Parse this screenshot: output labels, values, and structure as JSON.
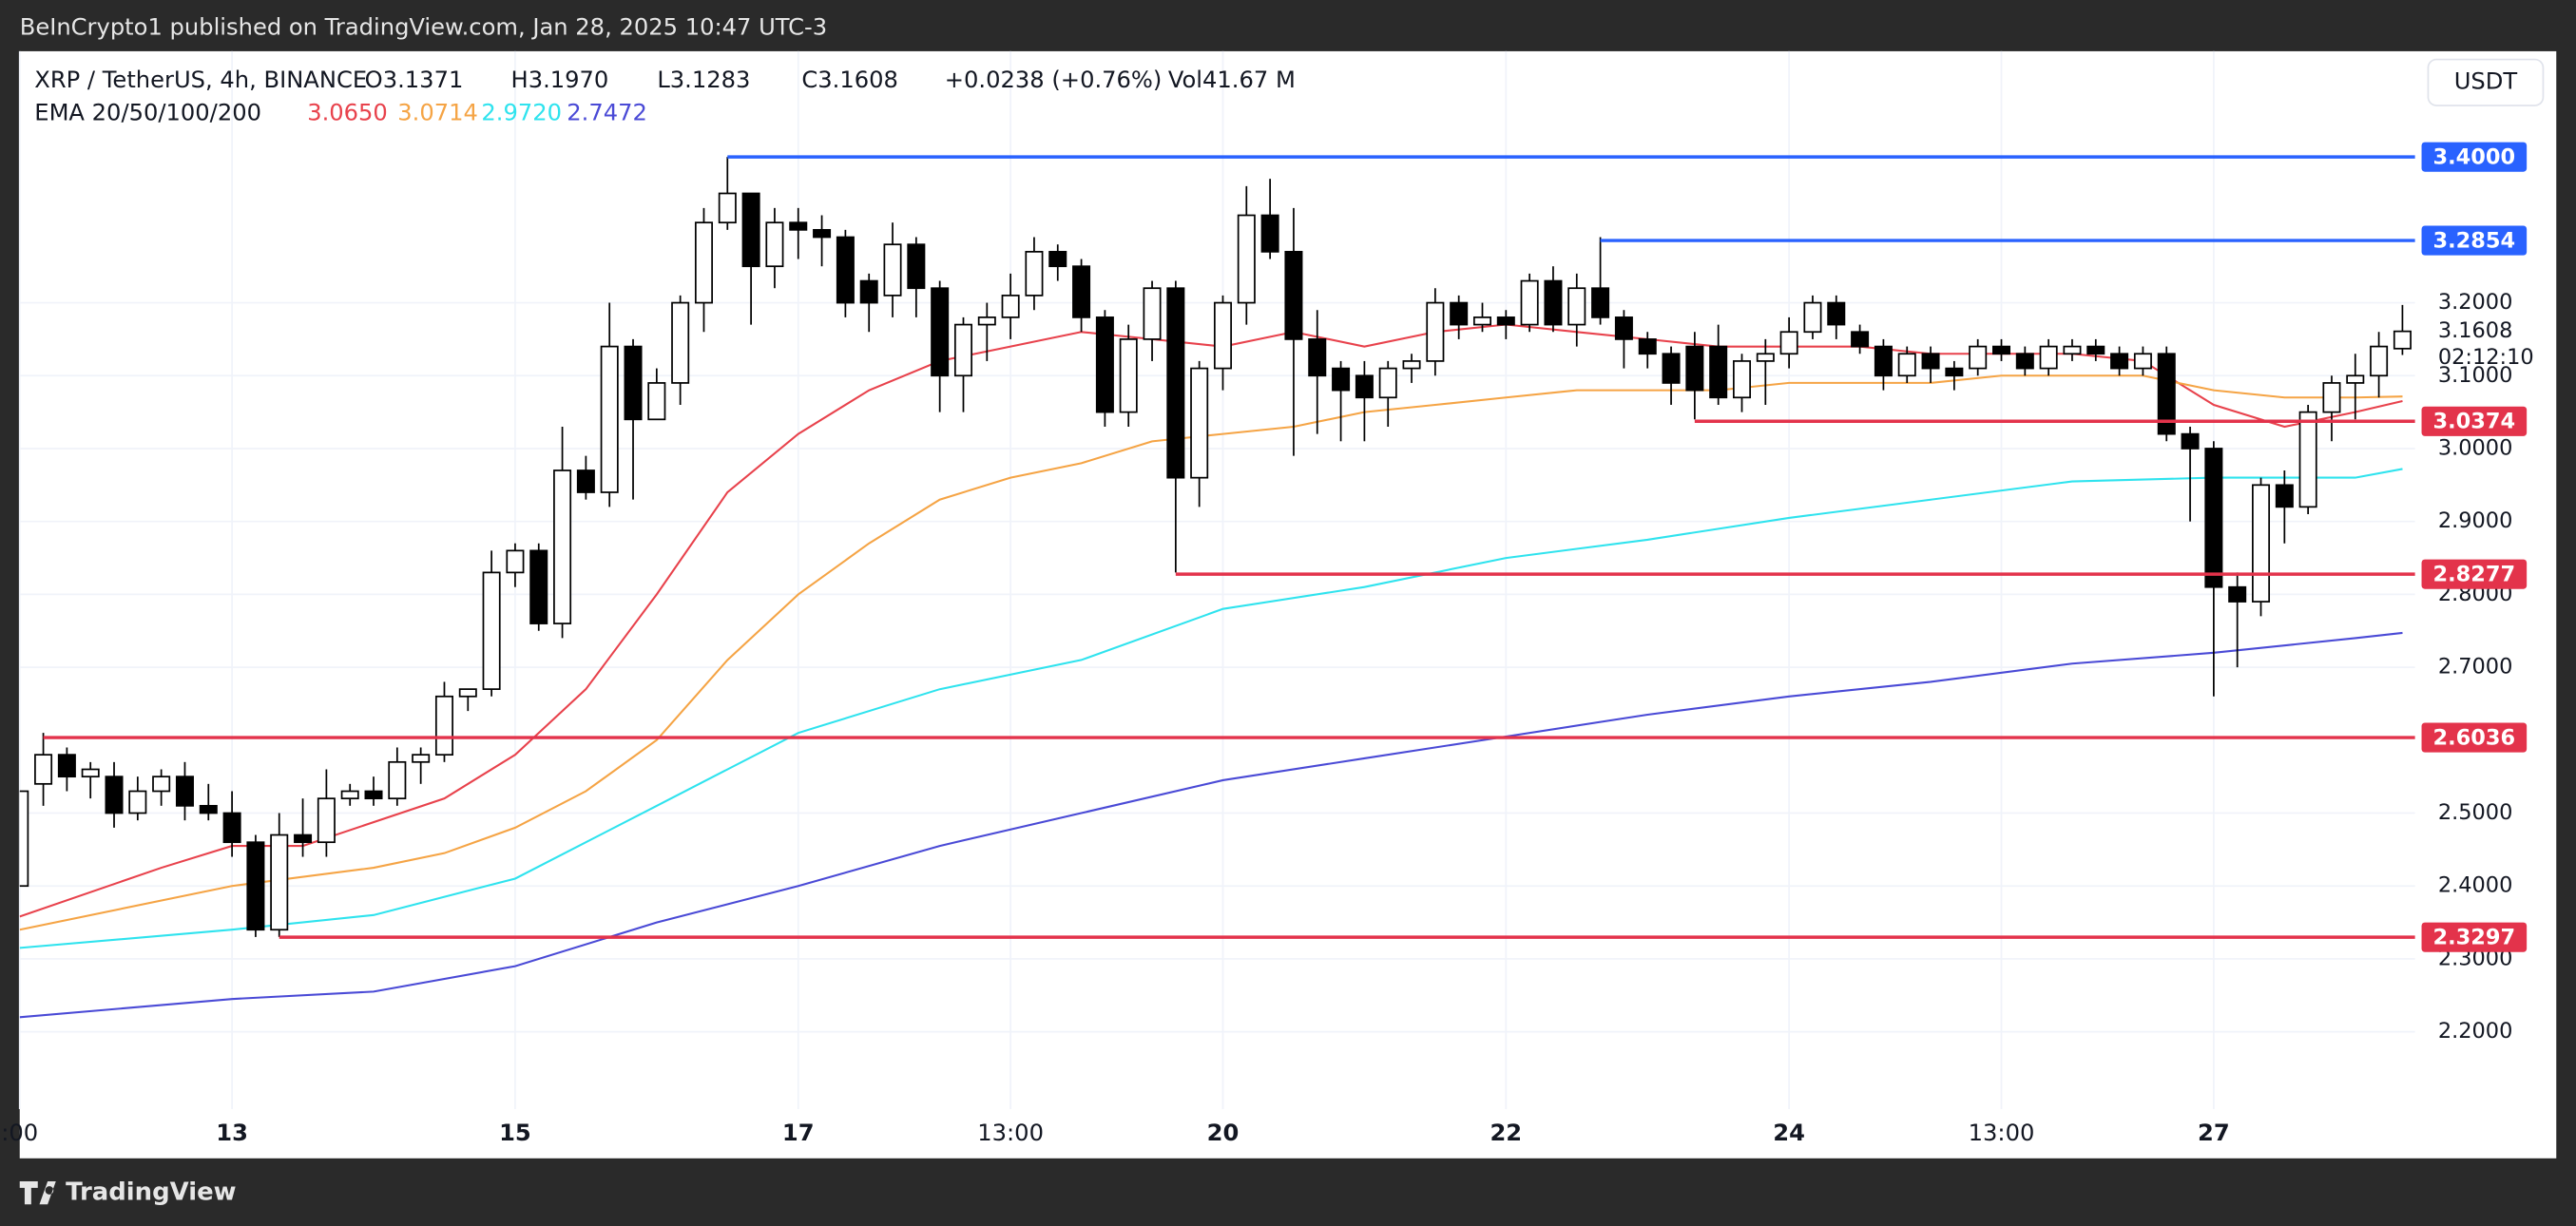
{
  "top_bar": {
    "published": "BeInCrypto1 published on TradingView.com, Jan 28, 2025 10:47 UTC-3"
  },
  "legend": {
    "symbol": "XRP / TetherUS, 4h, BINANCE",
    "ohlc": [
      "O3.1371",
      "H3.1970",
      "L3.1283",
      "C3.1608",
      "+0.0238 (+0.76%)",
      "Vol41.67 M"
    ],
    "ema_title": "EMA 20/50/100/200"
  },
  "currency_button": "USDT",
  "footer": {
    "brand": "TradingView"
  },
  "chart_data": {
    "type": "candlestick",
    "categories": [
      ":00",
      null,
      null,
      null,
      null,
      null,
      null,
      null,
      null,
      "13",
      null,
      null,
      null,
      null,
      null,
      null,
      null,
      null,
      null,
      null,
      null,
      "15",
      null,
      null,
      null,
      null,
      null,
      null,
      null,
      null,
      null,
      null,
      null,
      "17",
      null,
      null,
      null,
      null,
      null,
      null,
      null,
      null,
      "13:00",
      null,
      null,
      null,
      null,
      null,
      null,
      null,
      null,
      "20",
      null,
      null,
      null,
      null,
      null,
      null,
      null,
      null,
      null,
      null,
      null,
      "22",
      null,
      null,
      null,
      null,
      null,
      null,
      null,
      null,
      null,
      null,
      null,
      "24",
      null,
      null,
      null,
      null,
      null,
      null,
      null,
      null,
      "13:00",
      null,
      null,
      null,
      null,
      null,
      null,
      null,
      null,
      "27",
      null,
      null,
      null,
      null,
      null,
      null,
      null,
      null
    ],
    "open": [
      2.4,
      2.54,
      2.58,
      2.55,
      2.55,
      2.5,
      2.53,
      2.55,
      2.51,
      2.5,
      2.46,
      2.34,
      2.47,
      2.46,
      2.52,
      2.53,
      2.52,
      2.57,
      2.58,
      2.66,
      2.67,
      2.83,
      2.86,
      2.76,
      2.97,
      2.94,
      3.14,
      3.04,
      3.09,
      3.2,
      3.31,
      3.35,
      3.25,
      3.31,
      3.3,
      3.29,
      3.23,
      3.21,
      3.28,
      3.22,
      3.1,
      3.17,
      3.18,
      3.21,
      3.27,
      3.25,
      3.18,
      3.05,
      3.15,
      3.22,
      2.96,
      3.11,
      3.2,
      3.32,
      3.27,
      3.15,
      3.11,
      3.1,
      3.07,
      3.11,
      3.12,
      3.2,
      3.17,
      3.18,
      3.17,
      3.23,
      3.17,
      3.22,
      3.18,
      3.15,
      3.13,
      3.14,
      3.14,
      3.07,
      3.12,
      3.13,
      3.16,
      3.2,
      3.16,
      3.14,
      3.1,
      3.13,
      3.11,
      3.11,
      3.14,
      3.13,
      3.11,
      3.13,
      3.14,
      3.13,
      3.11,
      3.13,
      3.02,
      3.0,
      2.81,
      2.79,
      2.95,
      2.92,
      3.05,
      3.09,
      3.1,
      3.1371
    ],
    "high": [
      2.53,
      2.61,
      2.59,
      2.57,
      2.57,
      2.55,
      2.56,
      2.57,
      2.54,
      2.53,
      2.47,
      2.5,
      2.52,
      2.56,
      2.54,
      2.55,
      2.59,
      2.59,
      2.68,
      2.67,
      2.86,
      2.87,
      2.87,
      3.03,
      2.99,
      3.2,
      3.15,
      3.11,
      3.21,
      3.33,
      3.4,
      3.35,
      3.33,
      3.33,
      3.32,
      3.3,
      3.24,
      3.31,
      3.29,
      3.23,
      3.18,
      3.2,
      3.24,
      3.29,
      3.28,
      3.26,
      3.19,
      3.17,
      3.23,
      3.23,
      3.12,
      3.21,
      3.36,
      3.37,
      3.33,
      3.19,
      3.12,
      3.12,
      3.12,
      3.13,
      3.22,
      3.21,
      3.2,
      3.19,
      3.24,
      3.25,
      3.24,
      3.29,
      3.19,
      3.16,
      3.14,
      3.16,
      3.17,
      3.13,
      3.15,
      3.18,
      3.21,
      3.21,
      3.17,
      3.15,
      3.14,
      3.14,
      3.12,
      3.15,
      3.15,
      3.14,
      3.15,
      3.15,
      3.15,
      3.14,
      3.14,
      3.14,
      3.03,
      3.01,
      2.83,
      2.96,
      2.97,
      3.06,
      3.1,
      3.13,
      3.16,
      3.197
    ],
    "low": [
      2.4,
      2.51,
      2.53,
      2.52,
      2.48,
      2.49,
      2.51,
      2.49,
      2.49,
      2.44,
      2.33,
      2.33,
      2.44,
      2.44,
      2.51,
      2.51,
      2.51,
      2.54,
      2.57,
      2.64,
      2.66,
      2.81,
      2.75,
      2.74,
      2.93,
      2.92,
      2.93,
      3.04,
      3.06,
      3.16,
      3.3,
      3.17,
      3.22,
      3.26,
      3.25,
      3.18,
      3.16,
      3.18,
      3.18,
      3.05,
      3.05,
      3.12,
      3.15,
      3.19,
      3.23,
      3.16,
      3.03,
      3.03,
      3.12,
      2.83,
      2.92,
      3.08,
      3.17,
      3.26,
      2.99,
      3.02,
      3.01,
      3.01,
      3.03,
      3.09,
      3.1,
      3.15,
      3.16,
      3.15,
      3.16,
      3.16,
      3.14,
      3.17,
      3.11,
      3.11,
      3.06,
      3.04,
      3.06,
      3.05,
      3.06,
      3.11,
      3.15,
      3.15,
      3.13,
      3.08,
      3.09,
      3.09,
      3.08,
      3.1,
      3.12,
      3.1,
      3.1,
      3.12,
      3.12,
      3.1,
      3.1,
      3.01,
      2.9,
      2.66,
      2.7,
      2.77,
      2.87,
      2.91,
      3.01,
      3.04,
      3.07,
      3.1283
    ],
    "close": [
      2.53,
      2.58,
      2.55,
      2.56,
      2.5,
      2.53,
      2.55,
      2.51,
      2.5,
      2.46,
      2.34,
      2.47,
      2.46,
      2.52,
      2.53,
      2.52,
      2.57,
      2.58,
      2.66,
      2.67,
      2.83,
      2.86,
      2.76,
      2.97,
      2.94,
      3.14,
      3.04,
      3.09,
      3.2,
      3.31,
      3.35,
      3.25,
      3.31,
      3.3,
      3.29,
      3.2,
      3.2,
      3.28,
      3.22,
      3.1,
      3.17,
      3.18,
      3.21,
      3.27,
      3.25,
      3.18,
      3.05,
      3.15,
      3.22,
      2.96,
      3.11,
      3.2,
      3.32,
      3.27,
      3.15,
      3.1,
      3.08,
      3.07,
      3.11,
      3.12,
      3.2,
      3.17,
      3.18,
      3.17,
      3.23,
      3.17,
      3.22,
      3.18,
      3.15,
      3.13,
      3.09,
      3.08,
      3.07,
      3.12,
      3.13,
      3.16,
      3.2,
      3.17,
      3.14,
      3.1,
      3.13,
      3.11,
      3.1,
      3.14,
      3.13,
      3.11,
      3.14,
      3.14,
      3.13,
      3.11,
      3.13,
      3.02,
      3.0,
      2.81,
      2.79,
      2.95,
      2.92,
      3.05,
      3.09,
      3.1,
      3.14,
      3.1608
    ],
    "up_color": "#ffffff",
    "down_color": "#000000",
    "ylim": [
      2.094,
      3.545
    ],
    "yticks": [
      {
        "value": 2.2,
        "label": "2.2000"
      },
      {
        "value": 2.3,
        "label": "2.3000"
      },
      {
        "value": 2.4,
        "label": "2.4000"
      },
      {
        "value": 2.5,
        "label": "2.5000"
      },
      {
        "value": 2.7,
        "label": "2.7000"
      },
      {
        "value": 2.8,
        "label": "2.8000"
      },
      {
        "value": 2.9,
        "label": "2.9000"
      },
      {
        "value": 3.0,
        "label": "3.0000"
      },
      {
        "value": 3.1,
        "label": "3.1000"
      },
      {
        "value": 3.2,
        "label": "3.2000"
      }
    ],
    "grid": true,
    "ema": [
      {
        "name": "20",
        "last_label": "3.0650",
        "color": "#e8424c",
        "x": [
          0,
          6,
          9,
          12,
          18,
          21,
          24,
          27,
          30,
          33,
          36,
          39,
          42,
          45,
          48,
          51,
          54,
          57,
          60,
          63,
          66,
          69,
          72,
          75,
          78,
          81,
          84,
          87,
          90,
          93,
          96,
          99,
          101
        ],
        "values": [
          2.358,
          2.425,
          2.455,
          2.455,
          2.52,
          2.58,
          2.67,
          2.8,
          2.94,
          3.02,
          3.08,
          3.12,
          3.14,
          3.16,
          3.15,
          3.14,
          3.16,
          3.14,
          3.16,
          3.17,
          3.16,
          3.15,
          3.14,
          3.14,
          3.14,
          3.13,
          3.13,
          3.13,
          3.12,
          3.06,
          3.03,
          3.05,
          3.065
        ]
      },
      {
        "name": "50",
        "last_label": "3.0714",
        "color": "#f5a445",
        "x": [
          0,
          9,
          15,
          18,
          21,
          24,
          27,
          30,
          33,
          36,
          39,
          42,
          45,
          48,
          51,
          54,
          57,
          60,
          63,
          66,
          69,
          72,
          75,
          78,
          81,
          84,
          87,
          90,
          93,
          96,
          99,
          101
        ],
        "values": [
          2.34,
          2.4,
          2.425,
          2.445,
          2.48,
          2.53,
          2.6,
          2.71,
          2.8,
          2.87,
          2.93,
          2.96,
          2.98,
          3.01,
          3.02,
          3.03,
          3.05,
          3.06,
          3.07,
          3.08,
          3.08,
          3.08,
          3.09,
          3.09,
          3.09,
          3.1,
          3.1,
          3.1,
          3.08,
          3.07,
          3.07,
          3.0714
        ]
      },
      {
        "name": "100",
        "last_label": "2.9720",
        "color": "#2fe3ee",
        "x": [
          0,
          9,
          15,
          21,
          27,
          33,
          39,
          45,
          51,
          57,
          63,
          69,
          75,
          81,
          87,
          93,
          99,
          101
        ],
        "values": [
          2.315,
          2.34,
          2.36,
          2.41,
          2.51,
          2.61,
          2.67,
          2.71,
          2.78,
          2.81,
          2.85,
          2.875,
          2.905,
          2.93,
          2.955,
          2.96,
          2.96,
          2.972
        ]
      },
      {
        "name": "200",
        "last_label": "2.7472",
        "color": "#4a4ad6",
        "x": [
          0,
          9,
          15,
          21,
          27,
          33,
          39,
          45,
          51,
          57,
          63,
          69,
          75,
          81,
          87,
          93,
          99,
          101
        ],
        "values": [
          2.22,
          2.245,
          2.255,
          2.29,
          2.35,
          2.4,
          2.455,
          2.5,
          2.545,
          2.575,
          2.605,
          2.635,
          2.66,
          2.68,
          2.705,
          2.72,
          2.74,
          2.7472
        ]
      }
    ],
    "levels": [
      {
        "value": 3.4,
        "label": "3.4000",
        "color": "#2962ff",
        "x_start": 30
      },
      {
        "value": 3.2854,
        "label": "3.2854",
        "color": "#2962ff",
        "x_start": 67
      },
      {
        "value": 3.0374,
        "label": "3.0374",
        "color": "#e3334b",
        "x_start": 71
      },
      {
        "value": 2.8277,
        "label": "2.8277",
        "color": "#e3334b",
        "x_start": 49
      },
      {
        "value": 2.6036,
        "label": "2.6036",
        "color": "#e3334b",
        "x_start": 1
      },
      {
        "value": 2.3297,
        "label": "2.3297",
        "color": "#e3334b",
        "x_start": 11
      }
    ],
    "last_price_label": "3.1608",
    "countdown": "02:12:10"
  }
}
